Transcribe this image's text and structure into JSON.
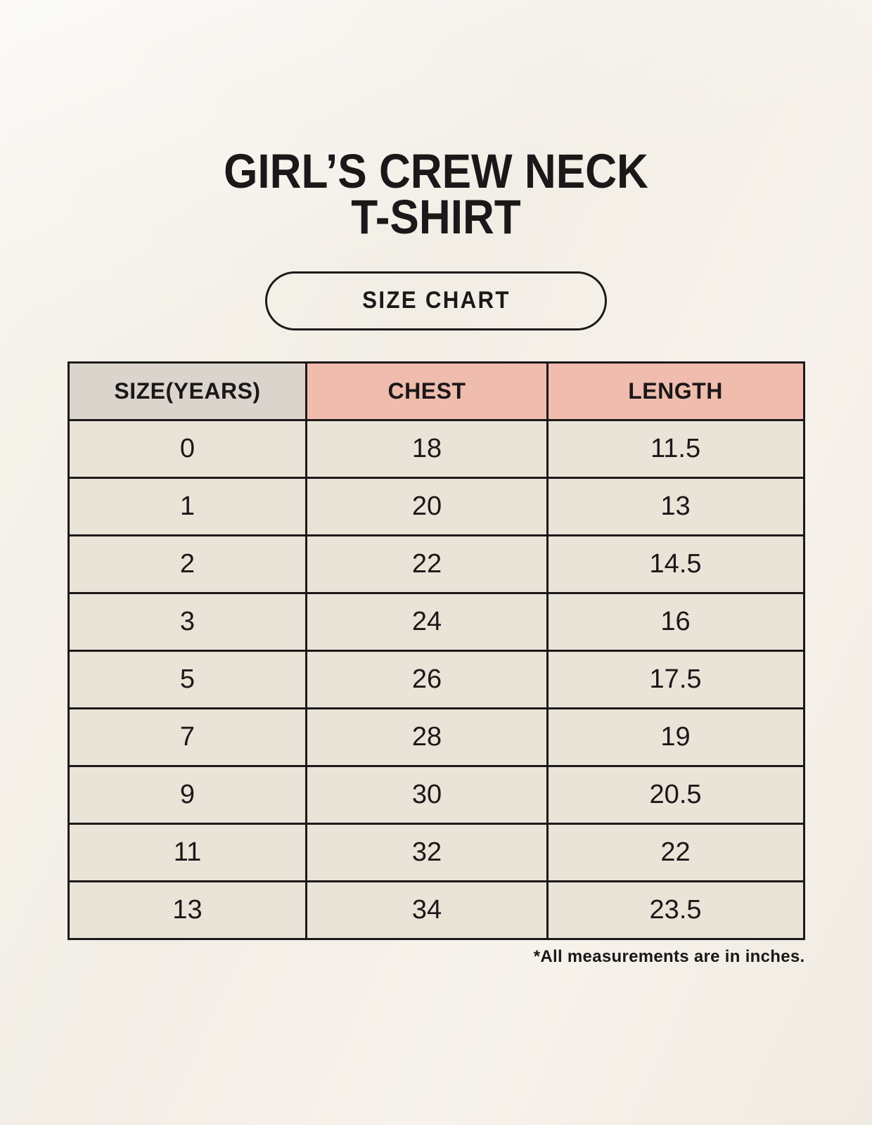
{
  "header": {
    "title_lines": [
      "GIRL’S CREW NECK",
      "T-SHIRT"
    ],
    "badge_label": "SIZE CHART"
  },
  "table": {
    "columns": [
      "SIZE(YEARS)",
      "CHEST",
      "LENGTH"
    ],
    "rows": [
      [
        "0",
        "18",
        "11.5"
      ],
      [
        "1",
        "20",
        "13"
      ],
      [
        "2",
        "22",
        "14.5"
      ],
      [
        "3",
        "24",
        "16"
      ],
      [
        "5",
        "26",
        "17.5"
      ],
      [
        "7",
        "28",
        "19"
      ],
      [
        "9",
        "30",
        "20.5"
      ],
      [
        "11",
        "32",
        "22"
      ],
      [
        "13",
        "34",
        "23.5"
      ]
    ]
  },
  "footnote": "*All measurements are in inches.",
  "colors": {
    "background": "#f4f1ea",
    "header_size_bg": "#dbd4cd",
    "header_measurement_bg": "#efbcae",
    "size_column_bg": "#ddd6d0",
    "value_cell_bg": "#eae3d8",
    "border": "#1c1a19",
    "text": "#1a1818"
  },
  "chart_data": {
    "type": "table",
    "title": "GIRL’S CREW NECK T-SHIRT",
    "subtitle": "SIZE CHART",
    "columns": [
      "SIZE(YEARS)",
      "CHEST",
      "LENGTH"
    ],
    "rows": [
      {
        "size_years": "0",
        "chest": 18,
        "length": 11.5
      },
      {
        "size_years": "1",
        "chest": 20,
        "length": 13
      },
      {
        "size_years": "2",
        "chest": 22,
        "length": 14.5
      },
      {
        "size_years": "3",
        "chest": 24,
        "length": 16
      },
      {
        "size_years": "5",
        "chest": 26,
        "length": 17.5
      },
      {
        "size_years": "7",
        "chest": 28,
        "length": 19
      },
      {
        "size_years": "9",
        "chest": 30,
        "length": 20.5
      },
      {
        "size_years": "11",
        "chest": 32,
        "length": 22
      },
      {
        "size_years": "13",
        "chest": 34,
        "length": 23.5
      }
    ],
    "units": "inches"
  }
}
